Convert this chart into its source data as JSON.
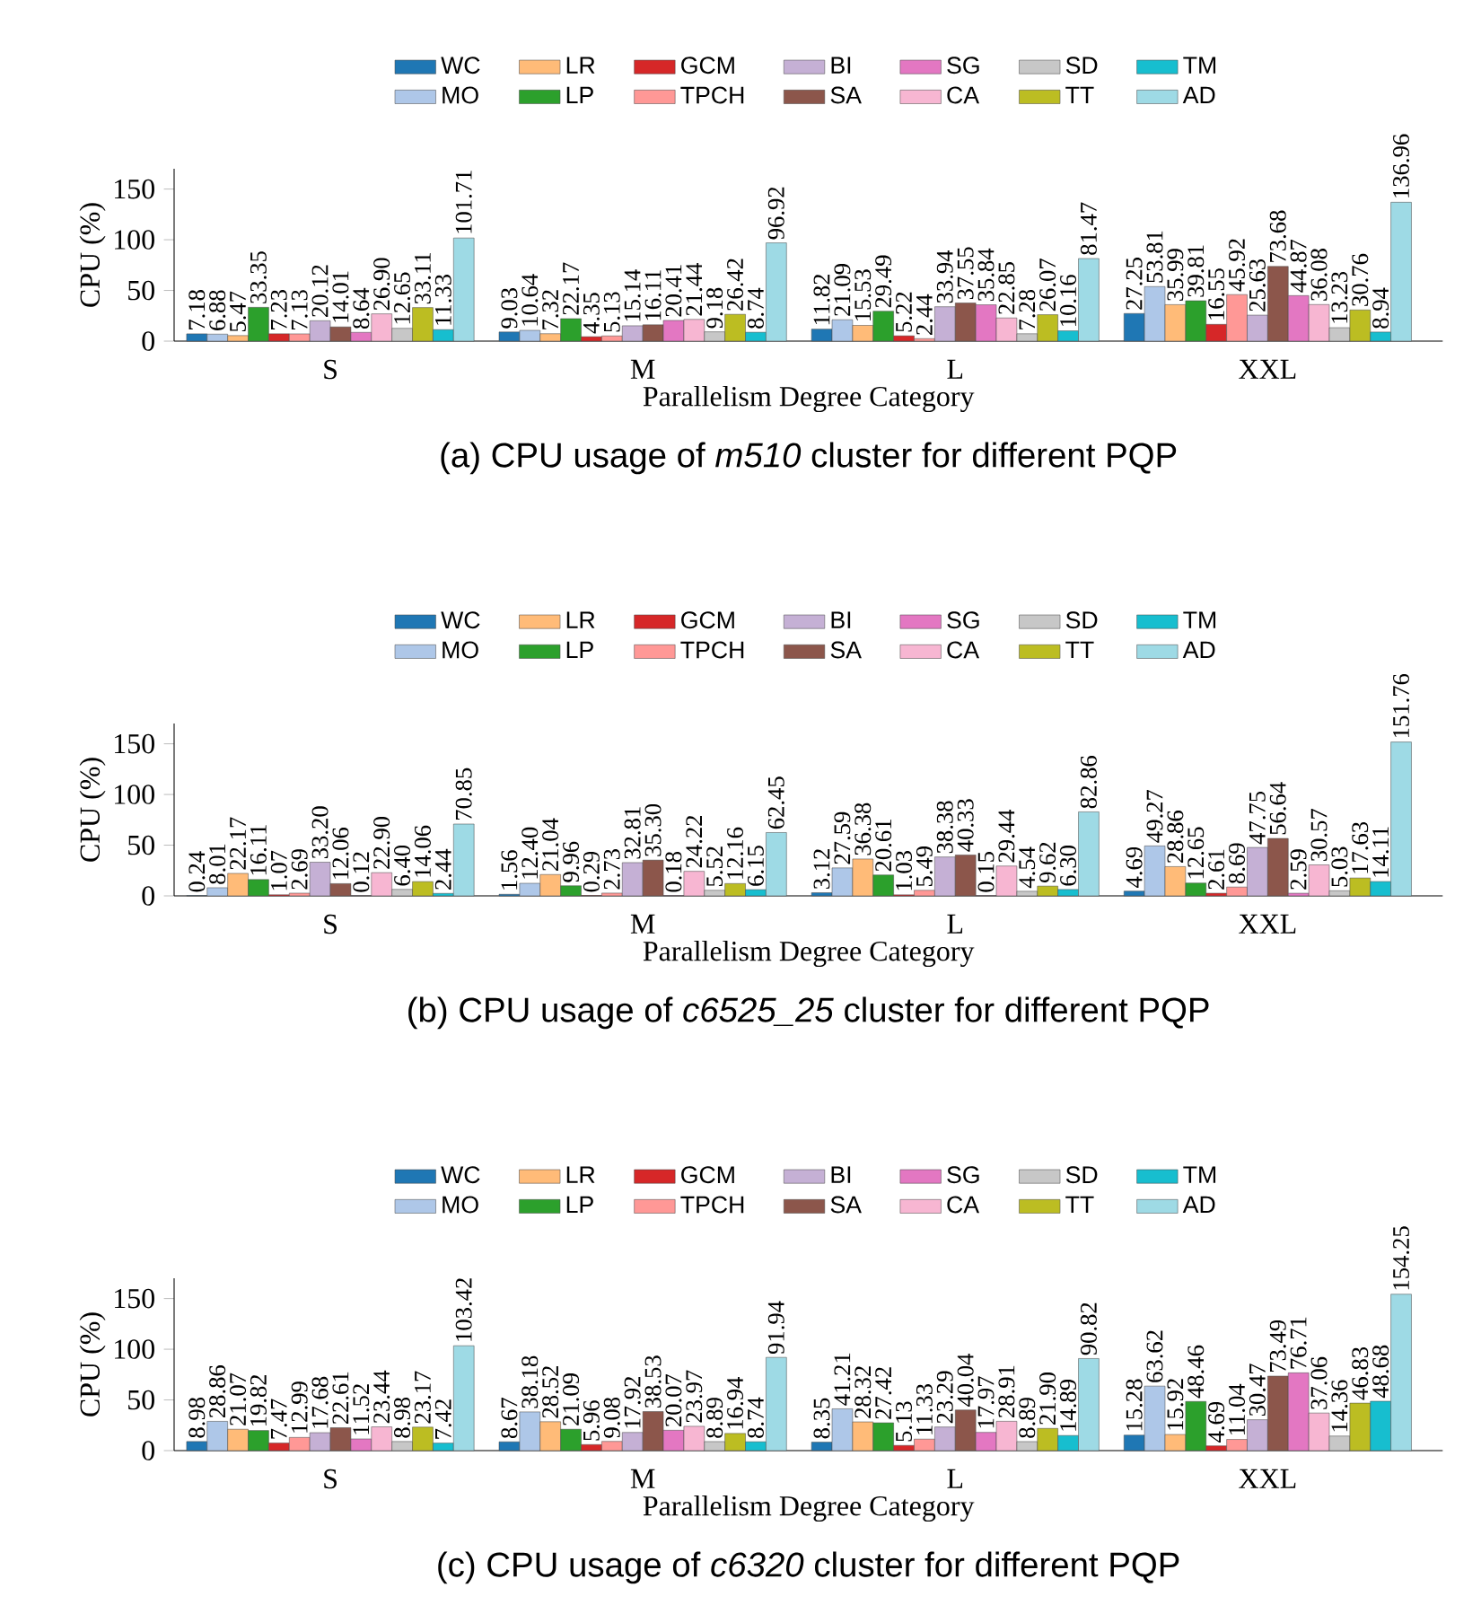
{
  "chart_data": [
    {
      "type": "bar",
      "title": "(a) CPU usage of *m510* cluster for different PQP",
      "xlabel": "Parallelism Degree Category",
      "ylabel": "CPU (%)",
      "categories": [
        "S",
        "M",
        "L",
        "XXL"
      ],
      "ylim": [
        0,
        170
      ],
      "yticks": [
        0,
        50,
        100,
        150
      ],
      "legend": "top",
      "grid": false,
      "series": [
        {
          "name": "WC",
          "color": "#1f77b4",
          "values": [
            7.18,
            9.03,
            11.82,
            27.25
          ],
          "value_labels": [
            "7.18",
            "9.03",
            "11.82",
            "27.25"
          ]
        },
        {
          "name": "MO",
          "color": "#aec7e8",
          "values": [
            6.88,
            10.64,
            21.09,
            53.81
          ],
          "value_labels": [
            "6.88",
            "10.64",
            "21.09",
            "53.81"
          ]
        },
        {
          "name": "LR",
          "color": "#ffbb78",
          "values": [
            5.47,
            7.32,
            15.53,
            35.99
          ],
          "value_labels": [
            "5.47",
            "7.32",
            "15.53",
            "35.99"
          ]
        },
        {
          "name": "LP",
          "color": "#2ca02c",
          "values": [
            33.35,
            22.17,
            29.49,
            39.81
          ],
          "value_labels": [
            "33.35",
            "22.17",
            "29.49",
            "39.81"
          ]
        },
        {
          "name": "GCM",
          "color": "#d62728",
          "values": [
            7.23,
            4.35,
            5.22,
            16.55
          ],
          "value_labels": [
            "7.23",
            "4.35",
            "5.22",
            "16.55"
          ]
        },
        {
          "name": "TPCH",
          "color": "#ff9896",
          "values": [
            7.13,
            5.13,
            2.44,
            45.92
          ],
          "value_labels": [
            "7.13",
            "5.13",
            "2.44",
            "45.92"
          ]
        },
        {
          "name": "BI",
          "color": "#c5b0d5",
          "values": [
            20.12,
            15.14,
            33.94,
            25.63
          ],
          "value_labels": [
            "20.12",
            "15.14",
            "33.94",
            "25.63"
          ]
        },
        {
          "name": "SA",
          "color": "#8c564b",
          "values": [
            14.01,
            16.11,
            37.55,
            73.68
          ],
          "value_labels": [
            "14.01",
            "16.11",
            "37.55",
            "73.68"
          ]
        },
        {
          "name": "SG",
          "color": "#e377c2",
          "values": [
            8.64,
            20.41,
            35.84,
            44.87
          ],
          "value_labels": [
            "8.64",
            "20.41",
            "35.84",
            "44.87"
          ]
        },
        {
          "name": "CA",
          "color": "#f7b6d2",
          "values": [
            26.9,
            21.44,
            22.85,
            36.08
          ],
          "value_labels": [
            "26.90",
            "21.44",
            "22.85",
            "36.08"
          ]
        },
        {
          "name": "SD",
          "color": "#c7c7c7",
          "values": [
            12.65,
            9.18,
            7.28,
            13.23
          ],
          "value_labels": [
            "12.65",
            "9.18",
            "7.28",
            "13.23"
          ]
        },
        {
          "name": "TT",
          "color": "#bcbd22",
          "values": [
            33.11,
            26.42,
            26.07,
            30.76
          ],
          "value_labels": [
            "33.11",
            "26.42",
            "26.07",
            "30.76"
          ]
        },
        {
          "name": "TM",
          "color": "#17becf",
          "values": [
            11.33,
            8.74,
            10.16,
            8.94
          ],
          "value_labels": [
            "11.33",
            "8.74",
            "10.16",
            "8.94"
          ]
        },
        {
          "name": "AD",
          "color": "#9edae5",
          "values": [
            101.71,
            96.92,
            81.47,
            136.96
          ],
          "value_labels": [
            "101.71",
            "96.92",
            "81.47",
            "136.96"
          ]
        }
      ]
    },
    {
      "type": "bar",
      "title": "(b) CPU usage of *c6525_25* cluster for different PQP",
      "xlabel": "Parallelism Degree Category",
      "ylabel": "CPU (%)",
      "categories": [
        "S",
        "M",
        "L",
        "XXL"
      ],
      "ylim": [
        0,
        170
      ],
      "yticks": [
        0,
        50,
        100,
        150
      ],
      "legend": "top",
      "grid": false,
      "series": [
        {
          "name": "WC",
          "color": "#1f77b4",
          "values": [
            0.24,
            1.56,
            3.12,
            4.69
          ],
          "value_labels": [
            "0.24",
            "1.56",
            "3.12",
            "4.69"
          ]
        },
        {
          "name": "MO",
          "color": "#aec7e8",
          "values": [
            8.01,
            12.4,
            27.59,
            49.27
          ],
          "value_labels": [
            "8.01",
            "12.40",
            "27.59",
            "49.27"
          ]
        },
        {
          "name": "LR",
          "color": "#ffbb78",
          "values": [
            22.17,
            21.04,
            36.38,
            28.86
          ],
          "value_labels": [
            "22.17",
            "21.04",
            "36.38",
            "28.86"
          ]
        },
        {
          "name": "LP",
          "color": "#2ca02c",
          "values": [
            16.11,
            9.96,
            20.61,
            12.65
          ],
          "value_labels": [
            "16.11",
            "9.96",
            "20.61",
            "12.65"
          ]
        },
        {
          "name": "GCM",
          "color": "#d62728",
          "values": [
            1.07,
            0.29,
            1.03,
            2.61
          ],
          "value_labels": [
            "1.07",
            "0.29",
            "1.03",
            "2.61"
          ]
        },
        {
          "name": "TPCH",
          "color": "#ff9896",
          "values": [
            2.69,
            2.73,
            5.49,
            8.69
          ],
          "value_labels": [
            "2.69",
            "2.73",
            "5.49",
            "8.69"
          ]
        },
        {
          "name": "BI",
          "color": "#c5b0d5",
          "values": [
            33.2,
            32.81,
            38.38,
            47.75
          ],
          "value_labels": [
            "33.20",
            "32.81",
            "38.38",
            "47.75"
          ]
        },
        {
          "name": "SA",
          "color": "#8c564b",
          "values": [
            12.06,
            35.3,
            40.33,
            56.64
          ],
          "value_labels": [
            "12.06",
            "35.30",
            "40.33",
            "56.64"
          ]
        },
        {
          "name": "SG",
          "color": "#e377c2",
          "values": [
            0.12,
            0.18,
            0.15,
            2.59
          ],
          "value_labels": [
            "0.12",
            "0.18",
            "0.15",
            "2.59"
          ]
        },
        {
          "name": "CA",
          "color": "#f7b6d2",
          "values": [
            22.9,
            24.22,
            29.44,
            30.57
          ],
          "value_labels": [
            "22.90",
            "24.22",
            "29.44",
            "30.57"
          ]
        },
        {
          "name": "SD",
          "color": "#c7c7c7",
          "values": [
            6.4,
            5.52,
            4.54,
            5.03
          ],
          "value_labels": [
            "6.40",
            "5.52",
            "4.54",
            "5.03"
          ]
        },
        {
          "name": "TT",
          "color": "#bcbd22",
          "values": [
            14.06,
            12.16,
            9.62,
            17.63
          ],
          "value_labels": [
            "14.06",
            "12.16",
            "9.62",
            "17.63"
          ]
        },
        {
          "name": "TM",
          "color": "#17becf",
          "values": [
            2.44,
            6.15,
            6.3,
            14.11
          ],
          "value_labels": [
            "2.44",
            "6.15",
            "6.30",
            "14.11"
          ]
        },
        {
          "name": "AD",
          "color": "#9edae5",
          "values": [
            70.85,
            62.45,
            82.86,
            151.76
          ],
          "value_labels": [
            "70.85",
            "62.45",
            "82.86",
            "151.76"
          ]
        }
      ]
    },
    {
      "type": "bar",
      "title": "(c) CPU usage of *c6320* cluster for different PQP",
      "xlabel": "Parallelism Degree Category",
      "ylabel": "CPU (%)",
      "categories": [
        "S",
        "M",
        "L",
        "XXL"
      ],
      "ylim": [
        0,
        170
      ],
      "yticks": [
        0,
        50,
        100,
        150
      ],
      "legend": "top",
      "grid": false,
      "series": [
        {
          "name": "WC",
          "color": "#1f77b4",
          "values": [
            8.98,
            8.67,
            8.35,
            15.28
          ],
          "value_labels": [
            "8.98",
            "8.67",
            "8.35",
            "15.28"
          ]
        },
        {
          "name": "MO",
          "color": "#aec7e8",
          "values": [
            28.86,
            38.18,
            41.21,
            63.62
          ],
          "value_labels": [
            "28.86",
            "38.18",
            "41.21",
            "63.62"
          ]
        },
        {
          "name": "LR",
          "color": "#ffbb78",
          "values": [
            21.07,
            28.52,
            28.32,
            15.92
          ],
          "value_labels": [
            "21.07",
            "28.52",
            "28.32",
            "15.92"
          ]
        },
        {
          "name": "LP",
          "color": "#2ca02c",
          "values": [
            19.82,
            21.09,
            27.42,
            48.46
          ],
          "value_labels": [
            "19.82",
            "21.09",
            "27.42",
            "48.46"
          ]
        },
        {
          "name": "GCM",
          "color": "#d62728",
          "values": [
            7.47,
            5.96,
            5.13,
            4.69
          ],
          "value_labels": [
            "7.47",
            "5.96",
            "5.13",
            "4.69"
          ]
        },
        {
          "name": "TPCH",
          "color": "#ff9896",
          "values": [
            12.99,
            9.08,
            11.33,
            11.04
          ],
          "value_labels": [
            "12.99",
            "9.08",
            "11.33",
            "11.04"
          ]
        },
        {
          "name": "BI",
          "color": "#c5b0d5",
          "values": [
            17.68,
            17.92,
            23.29,
            30.47
          ],
          "value_labels": [
            "17.68",
            "17.92",
            "23.29",
            "30.47"
          ]
        },
        {
          "name": "SA",
          "color": "#8c564b",
          "values": [
            22.61,
            38.53,
            40.04,
            73.49
          ],
          "value_labels": [
            "22.61",
            "38.53",
            "40.04",
            "73.49"
          ]
        },
        {
          "name": "SG",
          "color": "#e377c2",
          "values": [
            11.52,
            20.07,
            17.97,
            76.71
          ],
          "value_labels": [
            "11.52",
            "20.07",
            "17.97",
            "76.71"
          ]
        },
        {
          "name": "CA",
          "color": "#f7b6d2",
          "values": [
            23.44,
            23.97,
            28.91,
            37.06
          ],
          "value_labels": [
            "23.44",
            "23.97",
            "28.91",
            "37.06"
          ]
        },
        {
          "name": "SD",
          "color": "#c7c7c7",
          "values": [
            8.98,
            8.89,
            8.89,
            14.36
          ],
          "value_labels": [
            "8.98",
            "8.89",
            "8.89",
            "14.36"
          ]
        },
        {
          "name": "TT",
          "color": "#bcbd22",
          "values": [
            23.17,
            16.94,
            21.9,
            46.83
          ],
          "value_labels": [
            "23.17",
            "16.94",
            "21.90",
            "46.83"
          ]
        },
        {
          "name": "TM",
          "color": "#17becf",
          "values": [
            7.42,
            8.74,
            14.89,
            48.68
          ],
          "value_labels": [
            "7.42",
            "8.74",
            "14.89",
            "48.68"
          ]
        },
        {
          "name": "AD",
          "color": "#9edae5",
          "values": [
            103.42,
            91.94,
            90.82,
            154.25
          ],
          "value_labels": [
            "103.42",
            "91.94",
            "90.82",
            "154.25"
          ]
        }
      ]
    }
  ]
}
